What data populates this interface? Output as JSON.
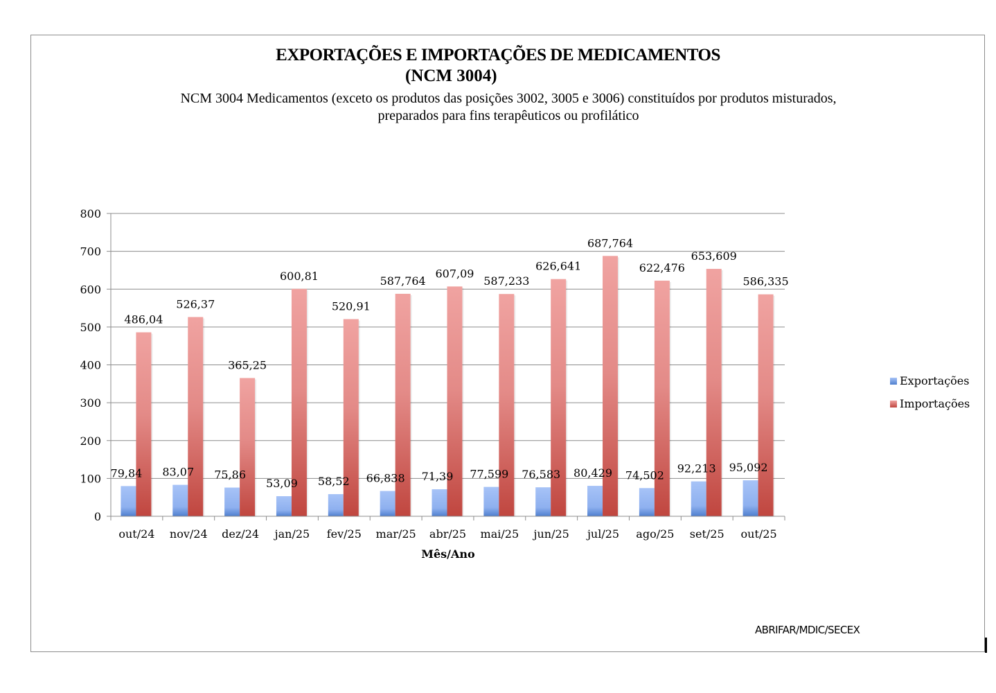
{
  "chart_data": {
    "type": "bar",
    "title": "EXPORTAÇÕES E IMPORTAÇÕES DE MEDICAMENTOS",
    "title_line2": "(NCM 3004)",
    "subtitle_line1": "NCM 3004 Medicamentos (exceto os produtos das posições 3002, 3005 e 3006) constituídos por produtos misturados,",
    "subtitle_line2": "preparados para fins terapêuticos ou profilático",
    "xlabel": "Mês/Ano",
    "ylabel": "",
    "ylim": [
      0,
      800
    ],
    "yticks": [
      "0",
      "100",
      "200",
      "300",
      "400",
      "500",
      "600",
      "700",
      "800"
    ],
    "ytick_values": [
      0,
      100,
      200,
      300,
      400,
      500,
      600,
      700,
      800
    ],
    "grid": true,
    "legend_position": "right",
    "categories": [
      "out/24",
      "nov/24",
      "dez/24",
      "jan/25",
      "fev/25",
      "mar/25",
      "abr/25",
      "mai/25",
      "jun/25",
      "jul/25",
      "ago/25",
      "set/25",
      "out/25"
    ],
    "series": [
      {
        "name": "Exportações",
        "color": "#5b8bd9",
        "values": [
          79.84,
          83.07,
          75.86,
          53.09,
          58.52,
          66.838,
          71.39,
          77.599,
          76.583,
          80.429,
          74.502,
          92.213,
          95.092
        ],
        "labels": [
          "79,84",
          "83,07",
          "75,86",
          "53,09",
          "58,52",
          "66,838",
          "71,39",
          "77,599",
          "76,583",
          "80,429",
          "74,502",
          "92,213",
          "95,092"
        ]
      },
      {
        "name": "Importações",
        "color": "#c0504d",
        "values": [
          486.04,
          526.37,
          365.25,
          600.81,
          520.91,
          587.764,
          607.09,
          587.233,
          626.641,
          687.764,
          622.476,
          653.609,
          586.335
        ],
        "labels": [
          "486,04",
          "526,37",
          "365,25",
          "600,81",
          "520,91",
          "587,764",
          "607,09",
          "587,233",
          "626,641",
          "687,764",
          "622,476",
          "653,609",
          "586,335"
        ]
      }
    ],
    "source": "ABRIFAR/MDIC/SECEX"
  }
}
